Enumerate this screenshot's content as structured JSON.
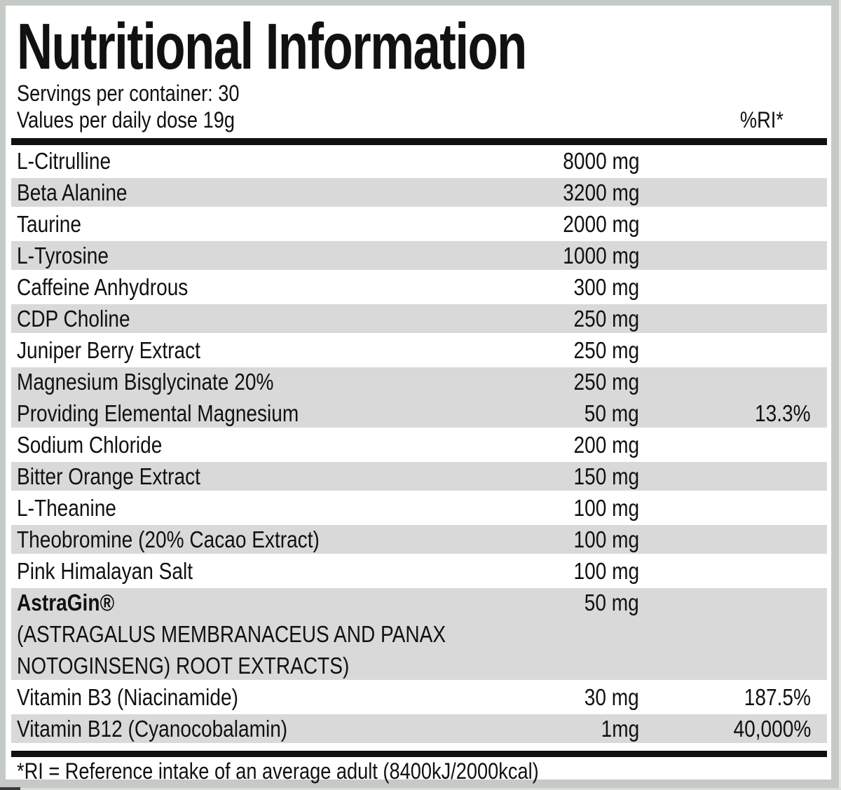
{
  "title": "Nutritional Information",
  "header": {
    "servings": "Servings per container: 30",
    "values": "Values per daily dose 19g",
    "ri_header": "%RI*"
  },
  "rows": [
    {
      "shaded": false,
      "lines": [
        {
          "name": "L-Citrulline",
          "amount": "8000 mg",
          "ri": ""
        }
      ]
    },
    {
      "shaded": true,
      "lines": [
        {
          "name": "Beta Alanine",
          "amount": "3200 mg",
          "ri": ""
        }
      ]
    },
    {
      "shaded": false,
      "lines": [
        {
          "name": "Taurine",
          "amount": "2000 mg",
          "ri": ""
        }
      ]
    },
    {
      "shaded": true,
      "lines": [
        {
          "name": "L-Tyrosine",
          "amount": "1000 mg",
          "ri": ""
        }
      ]
    },
    {
      "shaded": false,
      "lines": [
        {
          "name": "Caffeine Anhydrous",
          "amount": "300 mg",
          "ri": ""
        }
      ]
    },
    {
      "shaded": true,
      "lines": [
        {
          "name": "CDP Choline",
          "amount": "250 mg",
          "ri": ""
        }
      ]
    },
    {
      "shaded": false,
      "lines": [
        {
          "name": "Juniper Berry Extract",
          "amount": "250 mg",
          "ri": ""
        }
      ]
    },
    {
      "shaded": true,
      "lines": [
        {
          "name": "Magnesium Bisglycinate 20%",
          "amount": "250 mg",
          "ri": ""
        },
        {
          "name": "Providing Elemental Magnesium",
          "amount": "50 mg",
          "ri": "13.3%"
        }
      ]
    },
    {
      "shaded": false,
      "lines": [
        {
          "name": "Sodium Chloride",
          "amount": "200 mg",
          "ri": ""
        }
      ]
    },
    {
      "shaded": true,
      "lines": [
        {
          "name": "Bitter Orange Extract",
          "amount": "150 mg",
          "ri": ""
        }
      ]
    },
    {
      "shaded": false,
      "lines": [
        {
          "name": "L-Theanine",
          "amount": "100 mg",
          "ri": ""
        }
      ]
    },
    {
      "shaded": true,
      "lines": [
        {
          "name": "Theobromine (20% Cacao Extract)",
          "amount": "100 mg",
          "ri": ""
        }
      ]
    },
    {
      "shaded": false,
      "lines": [
        {
          "name": "Pink Himalayan Salt",
          "amount": "100 mg",
          "ri": ""
        }
      ]
    },
    {
      "shaded": true,
      "lines": [
        {
          "name": "AstraGin®",
          "amount": "50 mg",
          "ri": "",
          "bold": true
        },
        {
          "name": "(ASTRAGALUS MEMBRANACEUS AND PANAX",
          "amount": "",
          "ri": ""
        },
        {
          "name": "NOTOGINSENG) ROOT EXTRACTS)",
          "amount": "",
          "ri": ""
        }
      ]
    },
    {
      "shaded": false,
      "lines": [
        {
          "name": "Vitamin B3 (Niacinamide)",
          "amount": "30 mg",
          "ri": "187.5%"
        }
      ]
    },
    {
      "shaded": true,
      "lines": [
        {
          "name": "Vitamin B12 (Cyanocobalamin)",
          "amount": "1mg",
          "ri": "40,000%"
        }
      ]
    }
  ],
  "footnote": "*RI = Reference intake of an average adult (8400kJ/2000kcal)",
  "colors": {
    "row_shade": "#d9d9d9",
    "frame": "#c6cac6",
    "bar": "#111111",
    "text": "#111111",
    "label_bg": "#ffffff"
  }
}
